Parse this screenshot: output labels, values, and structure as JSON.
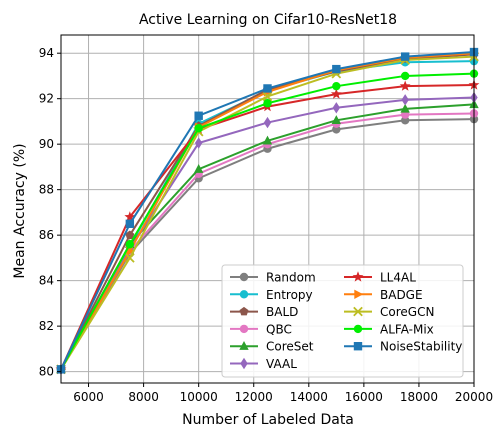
{
  "chart_data": {
    "type": "line",
    "title": "Active Learning on Cifar10-ResNet18",
    "xlabel": "Number of Labeled Data",
    "ylabel": "Mean Accuracy (%)",
    "xlim": [
      5000,
      20000
    ],
    "ylim": [
      79.5,
      94.8
    ],
    "xticks": [
      6000,
      8000,
      10000,
      12000,
      14000,
      16000,
      18000,
      20000
    ],
    "yticks": [
      80,
      82,
      84,
      86,
      88,
      90,
      92,
      94
    ],
    "grid": true,
    "legend_position": "lower-right",
    "x": [
      5000,
      7500,
      10000,
      12500,
      15000,
      17500,
      20000
    ],
    "series": [
      {
        "name": "Random",
        "color": "#7f7f7f",
        "marker": "circle",
        "values": [
          80.1,
          85.2,
          88.5,
          89.8,
          90.65,
          91.05,
          91.1
        ]
      },
      {
        "name": "Entropy",
        "color": "#17becf",
        "marker": "circle",
        "values": [
          80.1,
          85.5,
          90.9,
          92.35,
          93.2,
          93.6,
          93.65
        ]
      },
      {
        "name": "BALD",
        "color": "#8c564b",
        "marker": "pentagon",
        "values": [
          80.1,
          86.0,
          90.8,
          92.4,
          93.2,
          93.75,
          93.95
        ]
      },
      {
        "name": "QBC",
        "color": "#e377c2",
        "marker": "circle",
        "values": [
          80.1,
          85.3,
          88.7,
          90.0,
          90.9,
          91.3,
          91.35
        ]
      },
      {
        "name": "CoreSet",
        "color": "#2ca02c",
        "marker": "triangle",
        "values": [
          80.1,
          85.6,
          88.9,
          90.15,
          91.05,
          91.55,
          91.75
        ]
      },
      {
        "name": "VAAL",
        "color": "#9467bd",
        "marker": "diamond",
        "values": [
          80.1,
          85.4,
          90.05,
          90.95,
          91.6,
          91.95,
          92.05
        ]
      },
      {
        "name": "LL4AL",
        "color": "#d62728",
        "marker": "star",
        "values": [
          80.1,
          86.8,
          90.65,
          91.65,
          92.2,
          92.55,
          92.6
        ]
      },
      {
        "name": "BADGE",
        "color": "#ff7f0e",
        "marker": "triangle-right",
        "values": [
          80.1,
          85.3,
          90.75,
          92.3,
          93.25,
          93.8,
          94.0
        ]
      },
      {
        "name": "CoreGCN",
        "color": "#bcbd22",
        "marker": "x",
        "values": [
          80.1,
          85.0,
          90.55,
          92.1,
          93.1,
          93.7,
          93.85
        ]
      },
      {
        "name": "ALFA-Mix",
        "color": "#00ee00",
        "marker": "circle",
        "values": [
          80.1,
          85.6,
          90.7,
          91.8,
          92.55,
          93.0,
          93.1
        ]
      },
      {
        "name": "NoiseStability",
        "color": "#1f77b4",
        "marker": "square",
        "values": [
          80.1,
          86.5,
          91.25,
          92.45,
          93.3,
          93.85,
          94.05
        ]
      }
    ]
  }
}
